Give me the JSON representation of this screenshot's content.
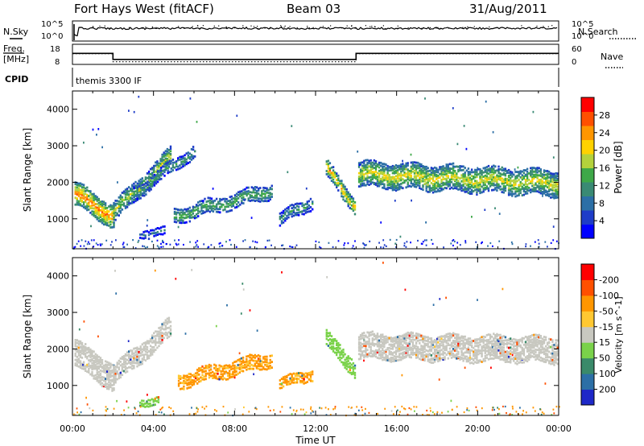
{
  "header": {
    "station": "Fort Hays West (fitACF)",
    "beam": "Beam 03",
    "date": "31/Aug/2011"
  },
  "sidepanel": {
    "nsky": "N.Sky",
    "nsearch": "N.Search",
    "freq_line1": "Freq.",
    "freq_line2": "[MHz]",
    "nave": "Nave",
    "cpid": "CPID",
    "mode": "themis 3300 IF"
  },
  "chart_data": [
    {
      "type": "line",
      "title": "N.Sky / N.Search",
      "y_ticks_left": [
        "10^5",
        "10^0"
      ],
      "y_ticks_right": [
        "10^5",
        "10^0"
      ]
    },
    {
      "type": "line",
      "title": "Freq / Nave",
      "y_ticks_left": [
        "18",
        "8"
      ],
      "y_ticks_right": [
        "60",
        "0"
      ],
      "series": [
        {
          "name": "Freq.",
          "x": [
            0,
            2,
            2,
            14,
            14,
            24
          ],
          "values": [
            13.5,
            13.5,
            10.5,
            10.5,
            13.5,
            13.5
          ]
        },
        {
          "name": "Nave",
          "x": [
            0,
            2,
            2,
            14,
            14,
            24
          ],
          "values": [
            32,
            32,
            8,
            8,
            32,
            32
          ]
        }
      ]
    },
    {
      "type": "heatmap",
      "ylabel": "Slant Range [km]",
      "xlabel": "Time UT",
      "xlim": [
        0,
        24
      ],
      "ylim": [
        180,
        4500
      ],
      "x_ticks": [
        "00:00",
        "04:00",
        "08:00",
        "12:00",
        "16:00",
        "20:00",
        "00:00"
      ],
      "y_ticks": [
        "1000",
        "2000",
        "3000",
        "4000"
      ],
      "colorbar": {
        "label": "Power [dB]",
        "ticks": [
          "4",
          "8",
          "12",
          "16",
          "20",
          "24",
          "28"
        ],
        "colors": [
          "#0000ff",
          "#1e3cc8",
          "#2c6fa6",
          "#3a8a74",
          "#3ea848",
          "#b4d23c",
          "#ffd200",
          "#ff9600",
          "#ff5000",
          "#ff0000"
        ]
      },
      "bands": [
        {
          "x": [
            0.1,
            2.0
          ],
          "y_start": 1700,
          "y_end": 1100,
          "width": 600,
          "value": 22
        },
        {
          "x": [
            2.0,
            4.8
          ],
          "y_start": 1200,
          "y_end": 2700,
          "width": 500,
          "value": 15
        },
        {
          "x": [
            3.0,
            6.0
          ],
          "y_start": 1700,
          "y_end": 2900,
          "width": 300,
          "value": 11
        },
        {
          "x": [
            5.0,
            9.8
          ],
          "y_start": 1100,
          "y_end": 1800,
          "width": 350,
          "value": 13
        },
        {
          "x": [
            3.3,
            4.5
          ],
          "y_start": 650,
          "y_end": 650,
          "width": 180,
          "value": 8
        },
        {
          "x": [
            10.2,
            11.8
          ],
          "y_start": 1000,
          "y_end": 1500,
          "width": 300,
          "value": 10
        },
        {
          "x": [
            12.5,
            13.9
          ],
          "y_start": 2400,
          "y_end": 1400,
          "width": 400,
          "value": 20
        },
        {
          "x": [
            14.1,
            23.9
          ],
          "y_start": 2250,
          "y_end": 2000,
          "width": 650,
          "value": 17
        }
      ]
    },
    {
      "type": "heatmap",
      "ylabel": "Slant Range [km]",
      "xlabel": "Time UT",
      "xlim": [
        0,
        24
      ],
      "ylim": [
        180,
        4500
      ],
      "x_ticks": [
        "00:00",
        "04:00",
        "08:00",
        "12:00",
        "16:00",
        "20:00",
        "00:00"
      ],
      "y_ticks": [
        "1000",
        "2000",
        "3000",
        "4000"
      ],
      "colorbar": {
        "label": "Velocity [m s^-1]",
        "ticks": [
          "200",
          "100",
          "50",
          "15",
          "-15",
          "-50",
          "-100",
          "-200"
        ],
        "colors": [
          "#1e28c8",
          "#2c6fa6",
          "#3a8a6a",
          "#7ad24a",
          "#c8c8c0",
          "#ffc832",
          "#ff9600",
          "#ff5000",
          "#ff0000"
        ]
      },
      "bands": [
        {
          "x": [
            0.1,
            2.0
          ],
          "y_start": 1900,
          "y_end": 1250,
          "width": 700,
          "value": 0
        },
        {
          "x": [
            2.0,
            4.8
          ],
          "y_start": 1300,
          "y_end": 2600,
          "width": 500,
          "value": 0
        },
        {
          "x": [
            5.2,
            9.8
          ],
          "y_start": 1150,
          "y_end": 1750,
          "width": 350,
          "value": -60
        },
        {
          "x": [
            10.2,
            11.8
          ],
          "y_start": 1050,
          "y_end": 1350,
          "width": 250,
          "value": -60
        },
        {
          "x": [
            3.3,
            4.2
          ],
          "y_start": 600,
          "y_end": 600,
          "width": 150,
          "value": 40
        },
        {
          "x": [
            12.5,
            13.9
          ],
          "y_start": 2300,
          "y_end": 1500,
          "width": 400,
          "value": 30
        },
        {
          "x": [
            14.1,
            23.9
          ],
          "y_start": 2100,
          "y_end": 2000,
          "width": 650,
          "value": 0
        }
      ]
    }
  ]
}
